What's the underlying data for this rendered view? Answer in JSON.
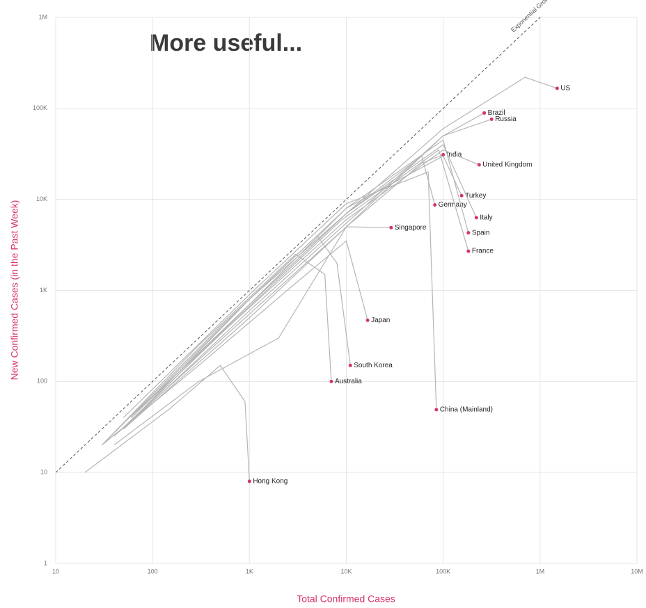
{
  "chart_data": {
    "type": "line",
    "title": "More useful...",
    "x_label": "Total Confirmed Cases",
    "y_label": "New Confirmed Cases (in the Past Week)",
    "annotation": "Exponential Growth of Confirmed Cases",
    "log_x": true,
    "log_y": true,
    "grid": true,
    "line_color": "#b5b5b5",
    "marker_color": "#d6336c",
    "axis_label_color": "#d6336c",
    "xlim": [
      10,
      10000000
    ],
    "xticks": [
      10,
      100,
      {
        "value": 1000,
        "label": "1K"
      },
      {
        "value": 10000,
        "label": "10K"
      },
      {
        "value": 100000,
        "label": "100K"
      },
      {
        "value": 1000000,
        "label": "1M"
      },
      {
        "value": 10000000,
        "label": "10M"
      }
    ],
    "ylim": [
      1,
      1000000
    ],
    "yticks": [
      1,
      10,
      100,
      {
        "value": 1000,
        "label": "1K"
      },
      {
        "value": 10000,
        "label": "10K"
      },
      {
        "value": 100000,
        "label": "100K"
      },
      {
        "value": 1000000,
        "label": "1M"
      }
    ],
    "series": [
      {
        "name": "US",
        "x": [
          60,
          1000,
          10000,
          100000,
          700000,
          1500000
        ],
        "values": [
          40,
          700,
          7000,
          60000,
          220000,
          166000
        ]
      },
      {
        "name": "Brazil",
        "x": [
          50,
          1000,
          10000,
          100000,
          265000
        ],
        "values": [
          30,
          600,
          5500,
          50000,
          89000
        ]
      },
      {
        "name": "Russia",
        "x": [
          40,
          1000,
          10000,
          100000,
          316000
        ],
        "values": [
          25,
          550,
          5000,
          50000,
          76000
        ]
      },
      {
        "name": "India",
        "x": [
          50,
          1000,
          10000,
          60000,
          100000
        ],
        "values": [
          30,
          500,
          5000,
          25000,
          31000
        ]
      },
      {
        "name": "United Kingdom",
        "x": [
          50,
          1000,
          10000,
          100000,
          235000
        ],
        "values": [
          35,
          650,
          6000,
          35000,
          24000
        ]
      },
      {
        "name": "Turkey",
        "x": [
          60,
          1000,
          10000,
          100000,
          155000
        ],
        "values": [
          40,
          700,
          8000,
          30000,
          11000
        ]
      },
      {
        "name": "Germany",
        "x": [
          50,
          1000,
          10000,
          60000,
          82000
        ],
        "values": [
          30,
          700,
          7000,
          30000,
          8700
        ]
      },
      {
        "name": "Italy",
        "x": [
          60,
          1000,
          10000,
          100000,
          220000
        ],
        "values": [
          40,
          800,
          7000,
          40000,
          6300
        ]
      },
      {
        "name": "Spain",
        "x": [
          50,
          1000,
          10000,
          100000,
          182000
        ],
        "values": [
          30,
          800,
          8000,
          45000,
          4300
        ]
      },
      {
        "name": "France",
        "x": [
          45,
          900,
          9000,
          90000,
          182000
        ],
        "values": [
          28,
          600,
          6000,
          35000,
          2700
        ]
      },
      {
        "name": "Singapore",
        "x": [
          40,
          300,
          2000,
          10000,
          29000
        ],
        "values": [
          20,
          100,
          300,
          5000,
          4900
        ]
      },
      {
        "name": "Japan",
        "x": [
          30,
          300,
          3000,
          10000,
          16600
        ],
        "values": [
          20,
          150,
          1200,
          3500,
          470
        ]
      },
      {
        "name": "South Korea",
        "x": [
          30,
          500,
          5000,
          8000,
          11000
        ],
        "values": [
          20,
          400,
          4000,
          2000,
          150
        ]
      },
      {
        "name": "Australia",
        "x": [
          30,
          300,
          3000,
          6000,
          7000
        ],
        "values": [
          20,
          250,
          2500,
          1500,
          100
        ]
      },
      {
        "name": "China (Mainland)",
        "x": [
          50,
          1000,
          10000,
          70000,
          85000
        ],
        "values": [
          40,
          900,
          9000,
          20000,
          49
        ]
      },
      {
        "name": "Hong Kong",
        "x": [
          20,
          150,
          500,
          900,
          1000
        ],
        "values": [
          10,
          50,
          150,
          60,
          8
        ]
      }
    ]
  }
}
